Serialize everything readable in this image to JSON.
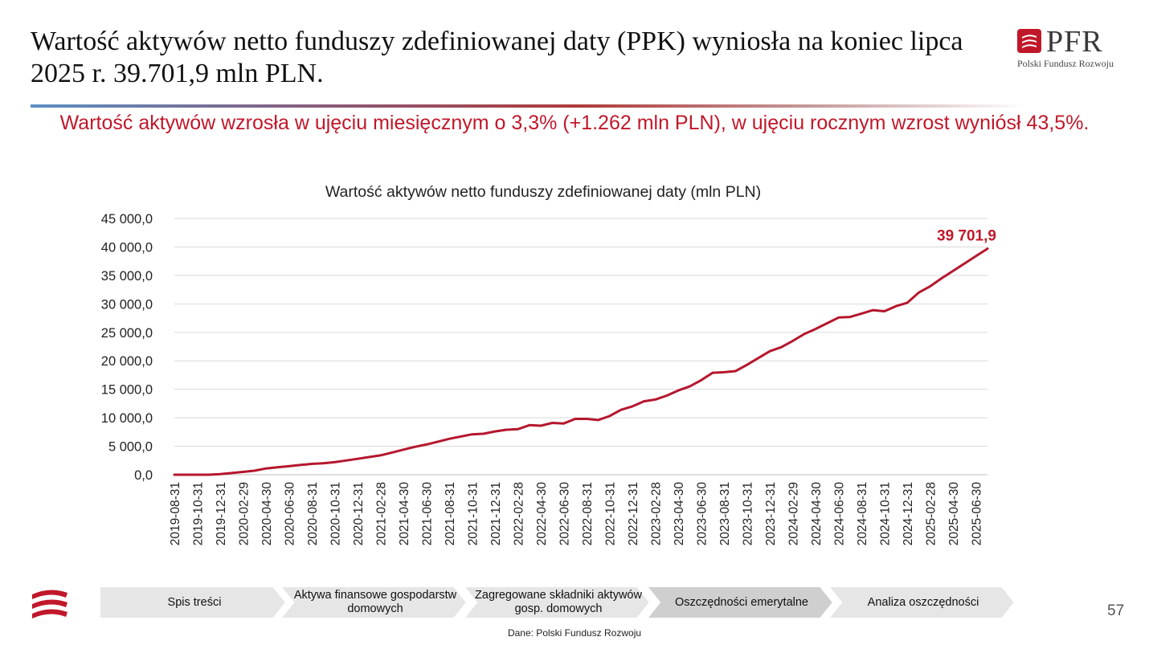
{
  "header": {
    "title": "Wartość aktywów netto funduszy zdefiniowanej daty (PPK) wyniosła na koniec lipca 2025 r. 39.701,9 mln PLN.",
    "subtitle": "Wartość aktywów wzrosła w ujęciu miesięcznym o 3,3% (+1.262 mln PLN), w ujęciu rocznym wzrost wyniósł 43,5%."
  },
  "logo": {
    "name": "PFR",
    "subtitle": "Polski Fundusz Rozwoju",
    "icon": "pfr-logo-icon"
  },
  "colors": {
    "accent": "#c0182a",
    "line": "#b5172e",
    "grid": "#d9d9d9",
    "nav_fill": "#e6e6e6",
    "nav_active": "#cfcfcf"
  },
  "chart_data": {
    "type": "line",
    "title": "Wartość aktywów netto funduszy zdefiniowanej daty (mln PLN)",
    "ylim": [
      0,
      45000
    ],
    "y_ticks": [
      "0,0",
      "5 000,0",
      "10 000,0",
      "15 000,0",
      "20 000,0",
      "25 000,0",
      "30 000,0",
      "35 000,0",
      "40 000,0",
      "45 000,0"
    ],
    "grid": true,
    "x": [
      "2019-08-31",
      "2019-09-30",
      "2019-10-31",
      "2019-11-30",
      "2019-12-31",
      "2020-01-31",
      "2020-02-29",
      "2020-03-31",
      "2020-04-30",
      "2020-05-31",
      "2020-06-30",
      "2020-07-31",
      "2020-08-31",
      "2020-09-30",
      "2020-10-31",
      "2020-11-30",
      "2020-12-31",
      "2021-01-31",
      "2021-02-28",
      "2021-03-31",
      "2021-04-30",
      "2021-05-31",
      "2021-06-30",
      "2021-07-31",
      "2021-08-31",
      "2021-09-30",
      "2021-10-31",
      "2021-11-30",
      "2021-12-31",
      "2022-01-31",
      "2022-02-28",
      "2022-03-31",
      "2022-04-30",
      "2022-05-31",
      "2022-06-30",
      "2022-07-31",
      "2022-08-31",
      "2022-09-30",
      "2022-10-31",
      "2022-11-30",
      "2022-12-31",
      "2023-01-31",
      "2023-02-28",
      "2023-03-31",
      "2023-04-30",
      "2023-05-31",
      "2023-06-30",
      "2023-07-31",
      "2023-08-31",
      "2023-09-30",
      "2023-10-31",
      "2023-11-30",
      "2023-12-31",
      "2024-01-31",
      "2024-02-29",
      "2024-03-31",
      "2024-04-30",
      "2024-05-31",
      "2024-06-30",
      "2024-07-31",
      "2024-08-31",
      "2024-09-30",
      "2024-10-31",
      "2024-11-30",
      "2024-12-31",
      "2025-01-31",
      "2025-02-28",
      "2025-03-31",
      "2025-04-30",
      "2025-05-31",
      "2025-06-30",
      "2025-07-31"
    ],
    "x_tick_labels": [
      "2019-08-31",
      "2019-10-31",
      "2019-12-31",
      "2020-02-29",
      "2020-04-30",
      "2020-06-30",
      "2020-08-31",
      "2020-10-31",
      "2020-12-31",
      "2021-02-28",
      "2021-04-30",
      "2021-06-30",
      "2021-08-31",
      "2021-10-31",
      "2021-12-31",
      "2022-02-28",
      "2022-04-30",
      "2022-06-30",
      "2022-08-31",
      "2022-10-31",
      "2022-12-31",
      "2023-02-28",
      "2023-04-30",
      "2023-06-30",
      "2023-08-31",
      "2023-10-31",
      "2023-12-31",
      "2024-02-29",
      "2024-04-30",
      "2024-06-30",
      "2024-08-31",
      "2024-10-31",
      "2024-12-31",
      "2025-02-28",
      "2025-04-30",
      "2025-06-30"
    ],
    "series": [
      {
        "values": [
          0,
          0,
          0,
          0,
          100,
          300,
          500,
          700,
          1100,
          1300,
          1500,
          1700,
          1900,
          2000,
          2200,
          2500,
          2800,
          3100,
          3400,
          3900,
          4400,
          4900,
          5300,
          5800,
          6300,
          6700,
          7100,
          7200,
          7600,
          7900,
          8000,
          8700,
          8600,
          9100,
          9000,
          9800,
          9800,
          9600,
          10300,
          11400,
          12000,
          12900,
          13200,
          13900,
          14800,
          15500,
          16600,
          17900,
          18000,
          18200,
          19300,
          20500,
          21700,
          22400,
          23500,
          24700,
          25600,
          26600,
          27600,
          27700,
          28300,
          28900,
          28700,
          29600,
          30200,
          32000,
          33100,
          34500,
          35800,
          37100,
          38400,
          39701.9
        ]
      }
    ],
    "annotations": [
      {
        "x": "2025-07-31",
        "text": "39 701,9"
      }
    ]
  },
  "nav": {
    "items": [
      {
        "label": "Spis treści"
      },
      {
        "label": "Aktywa finansowe gospodarstw domowych"
      },
      {
        "label": "Zagregowane składniki aktywów gosp. domowych"
      },
      {
        "label": "Oszczędności emerytalne",
        "active": true
      },
      {
        "label": "Analiza oszczędności"
      }
    ]
  },
  "footer": {
    "page_number": "57",
    "source": "Dane: Polski Fundusz Rozwoju"
  }
}
